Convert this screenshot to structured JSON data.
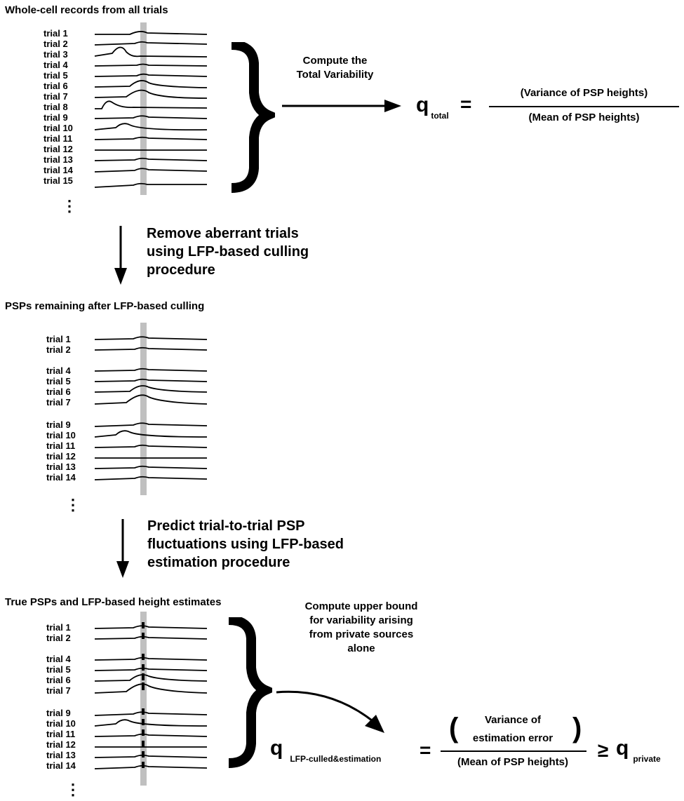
{
  "sections": [
    {
      "title": "Whole-cell records from all trials",
      "labels": [
        "trial 1",
        "trial 2",
        "trial 3",
        "trial 4",
        "trial 5",
        "trial 6",
        "trial 7",
        "trial 8",
        "trial 9",
        "trial 10",
        "trial 11",
        "trial 12",
        "trial 13",
        "trial 14",
        "trial 15"
      ]
    },
    {
      "title": "PSPs remaining after LFP-based culling",
      "labels": [
        "trial 1",
        "trial 2",
        "trial 4",
        "trial 5",
        "trial 6",
        "trial 7",
        "trial 9",
        "trial 10",
        "trial 11",
        "trial 12",
        "trial 13",
        "trial 14"
      ]
    },
    {
      "title": "True PSPs and LFP-based height estimates",
      "labels": [
        "trial 1",
        "trial 2",
        "trial 4",
        "trial 5",
        "trial 6",
        "trial 7",
        "trial 9",
        "trial 10",
        "trial 11",
        "trial 12",
        "trial 13",
        "trial 14"
      ]
    }
  ],
  "ellipsis": "⋮",
  "steps": {
    "remove": [
      "Remove aberrant trials",
      "using LFP-based culling",
      "procedure"
    ],
    "predict": [
      "Predict trial-to-trial PSP",
      "fluctuations using LFP-based",
      "estimation procedure"
    ]
  },
  "compute_total": [
    "Compute  the",
    "Total Variability"
  ],
  "compute_upper": [
    "Compute  upper bound",
    "for variability arising",
    "from private sources",
    "alone"
  ],
  "q_total": {
    "symbol": "q",
    "subscript": "total",
    "equals": "=",
    "numerator": "(Variance of PSP heights)",
    "denominator": "(Mean of PSP heights)"
  },
  "q_lfp": {
    "symbol": "q",
    "subscript": "LFP-culled&estimation",
    "equals": "=",
    "numerator": "Variance of",
    "numerator2": "estimation error",
    "paren_open": "(",
    "paren_close": ")",
    "denominator": "(Mean of PSP heights)",
    "geq": "≥",
    "rhs_symbol": "q",
    "rhs_subscript": "private"
  },
  "colors": {
    "ink": "#000000",
    "highlight_band": "#c0c0c0",
    "marker": "#000000"
  }
}
